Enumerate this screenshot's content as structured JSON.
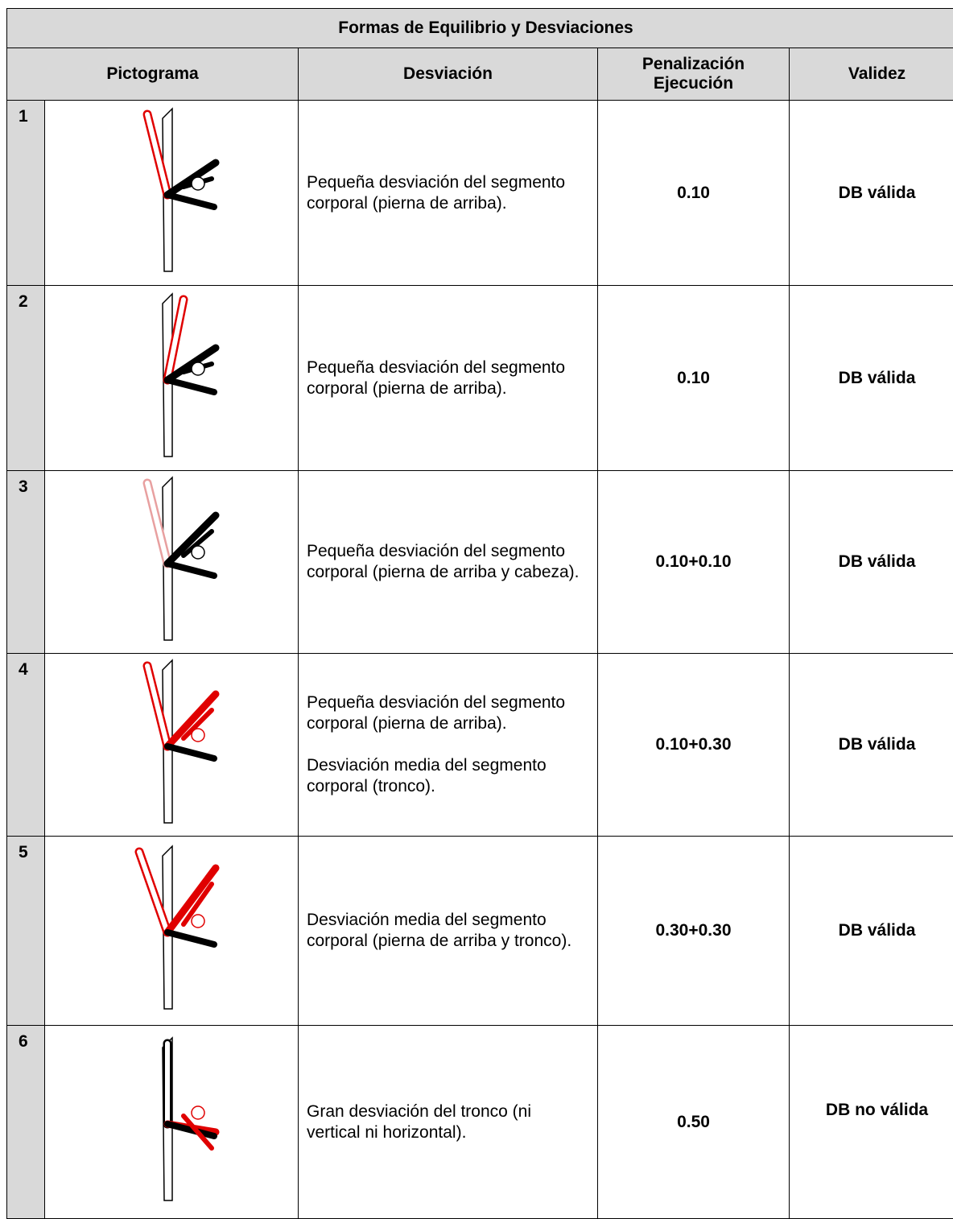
{
  "table": {
    "title": "Formas de Equilibrio y Desviaciones",
    "headers": [
      "Pictograma",
      "Desviación",
      "Penalización Ejecución",
      "Validez"
    ],
    "rows": [
      {
        "number": "1",
        "desviacion": [
          "Pequeña desviación del segmento corporal (pierna de arriba)."
        ],
        "penalizacion": "0.10",
        "validez": "DB válida"
      },
      {
        "number": "2",
        "desviacion": [
          "Pequeña desviación del segmento corporal (pierna de arriba)."
        ],
        "penalizacion": "0.10",
        "validez": "DB válida"
      },
      {
        "number": "3",
        "desviacion": [
          "Pequeña desviación del segmento corporal (pierna de arriba y cabeza)."
        ],
        "penalizacion": "0.10+0.10",
        "validez": "DB válida"
      },
      {
        "number": "4",
        "desviacion": [
          "Pequeña desviación del segmento corporal (pierna de arriba).",
          "Desviación media del segmento corporal (tronco)."
        ],
        "penalizacion": "0.10+0.30",
        "validez": "DB válida"
      },
      {
        "number": "5",
        "desviacion": [
          "Desviación media del segmento corporal (pierna de arriba y tronco)."
        ],
        "penalizacion": "0.30+0.30",
        "validez": "DB válida"
      },
      {
        "number": "6",
        "desviacion": [
          "Gran desviación del tronco (ni vertical ni horizontal)."
        ],
        "penalizacion": "0.50",
        "validez": "DB no válida"
      }
    ]
  }
}
